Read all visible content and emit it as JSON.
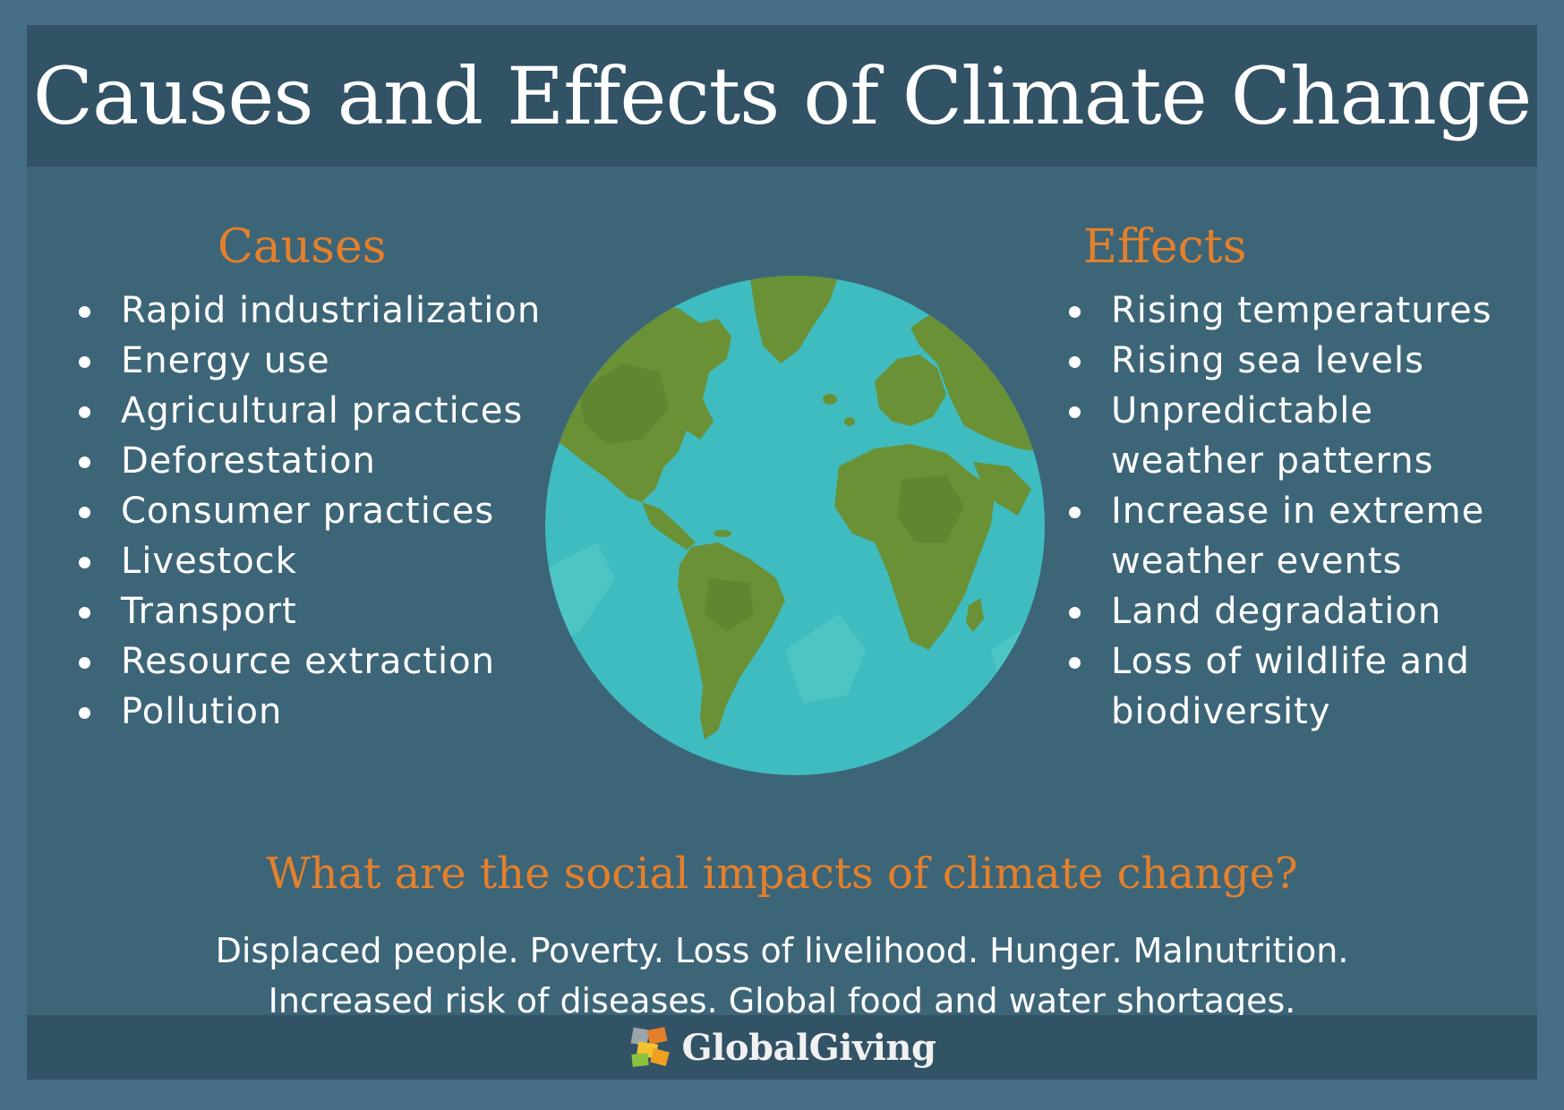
{
  "title": "Causes and Effects of Climate Change",
  "causes": {
    "heading": "Causes",
    "items": [
      "Rapid industrialization",
      "Energy use",
      "Agricultural practices",
      "Deforestation",
      "Consumer practices",
      "Livestock",
      "Transport",
      "Resource extraction",
      "Pollution"
    ]
  },
  "effects": {
    "heading": "Effects",
    "items": [
      "Rising temperatures",
      "Rising sea levels",
      "Unpredictable weather patterns",
      "Increase in extreme weather events",
      "Land degradation",
      "Loss of wildlife and biodiversity"
    ]
  },
  "social": {
    "question": "What are the social impacts of climate change?",
    "line1": "Displaced people. Poverty. Loss of livelihood. Hunger. Malnutrition.",
    "line2": "Increased risk of diseases. Global food and water shortages."
  },
  "footer": {
    "brand": "GlobalGiving"
  },
  "colors": {
    "background": "#466f86",
    "panel": "#3d6578",
    "bar": "#325265",
    "accent": "#e4802b",
    "ocean": "#3fbcbf",
    "land": "#6a9136"
  },
  "icons": [
    "globe-illustration",
    "globalgiving-logo-icon"
  ]
}
